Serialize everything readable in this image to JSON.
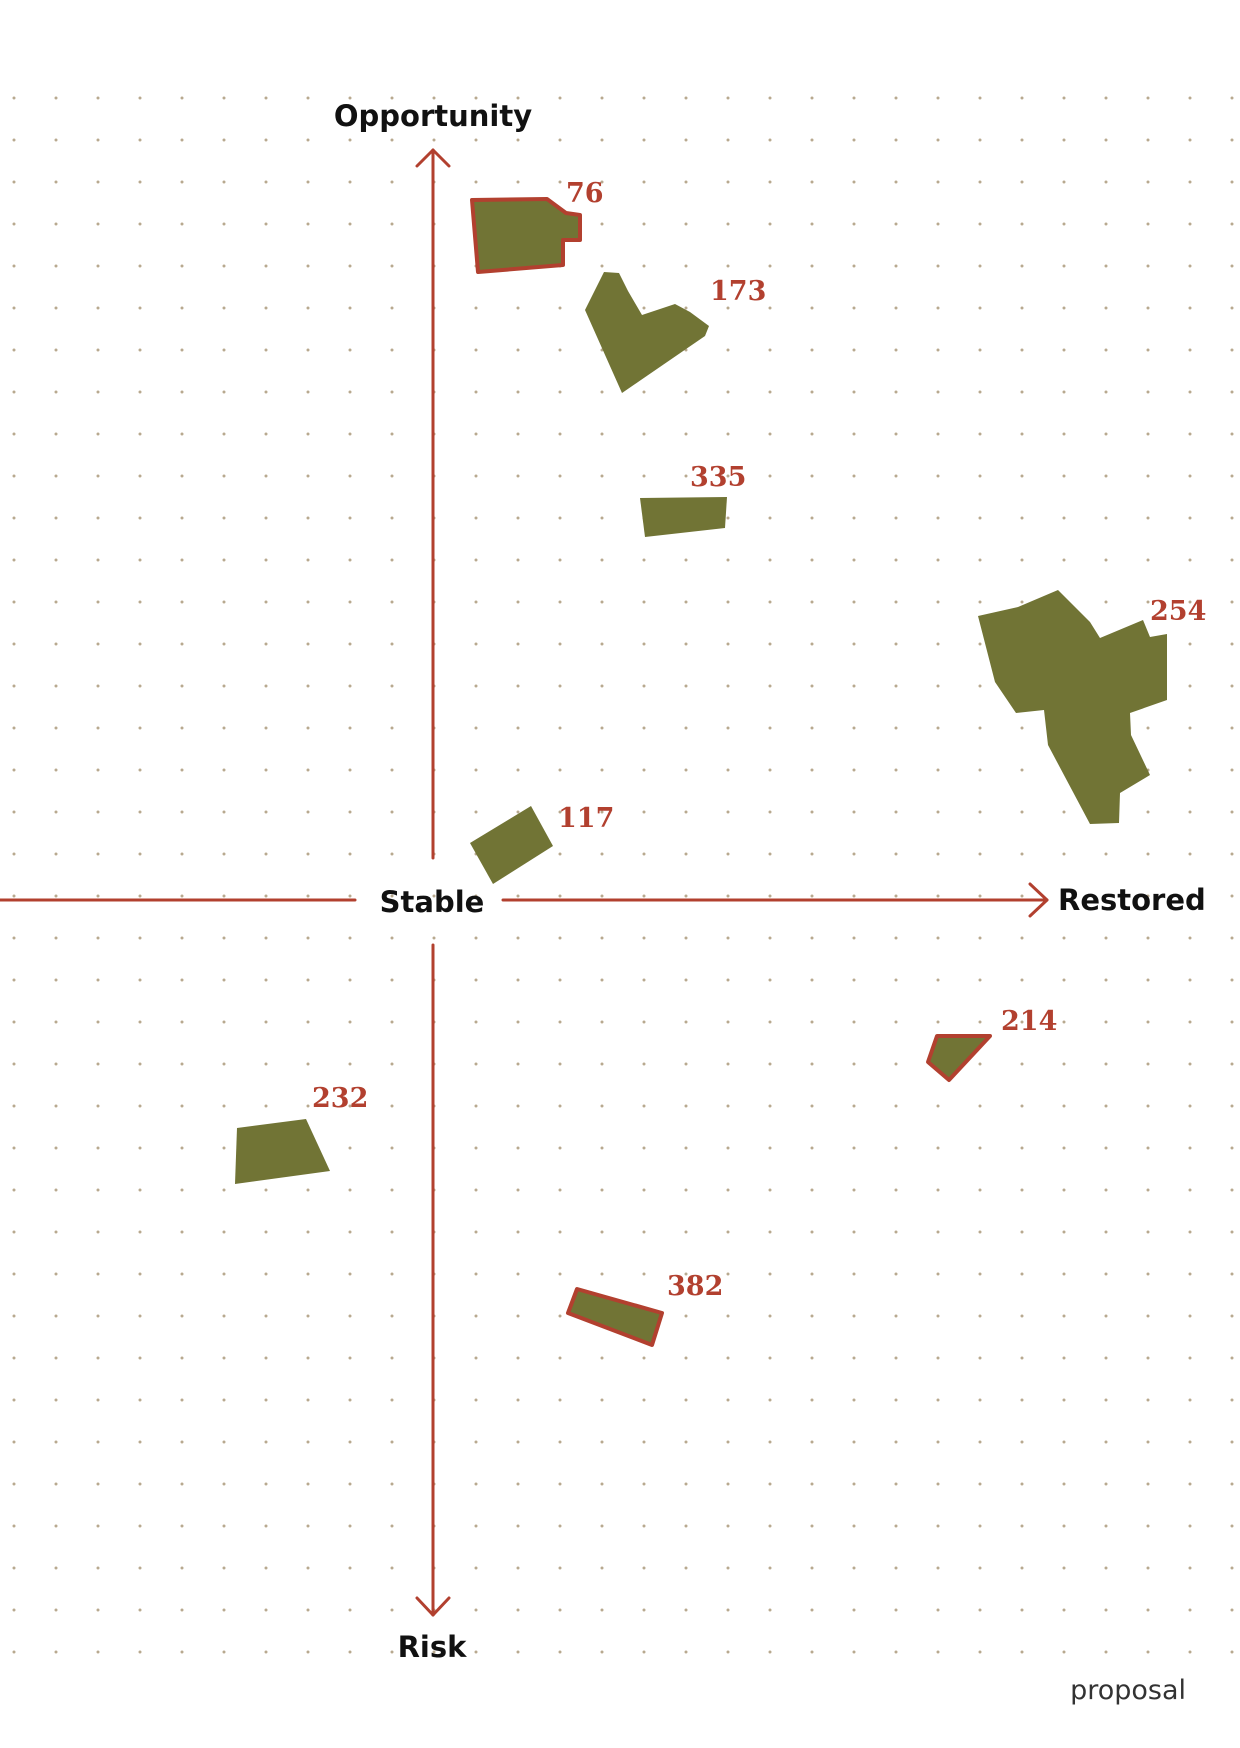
{
  "colors": {
    "background": "#ffffff",
    "dot": "#b8a98f",
    "axis": "#b2402f",
    "parcel_fill": "#717435",
    "parcel_outline": "#b2402f",
    "label_text": "#111111",
    "number_text": "#b2402f"
  },
  "axes": {
    "top": "Opportunity",
    "bottom": "Risk",
    "center": "Stable",
    "right": "Restored"
  },
  "parcels": [
    {
      "id": "76",
      "label": "76",
      "outlined": true
    },
    {
      "id": "173",
      "label": "173",
      "outlined": false
    },
    {
      "id": "335",
      "label": "335",
      "outlined": false
    },
    {
      "id": "254",
      "label": "254",
      "outlined": false
    },
    {
      "id": "117",
      "label": "117",
      "outlined": false
    },
    {
      "id": "214",
      "label": "214",
      "outlined": true
    },
    {
      "id": "232",
      "label": "232",
      "outlined": false
    },
    {
      "id": "382",
      "label": "382",
      "outlined": true
    }
  ],
  "footer": {
    "label": "proposal"
  }
}
